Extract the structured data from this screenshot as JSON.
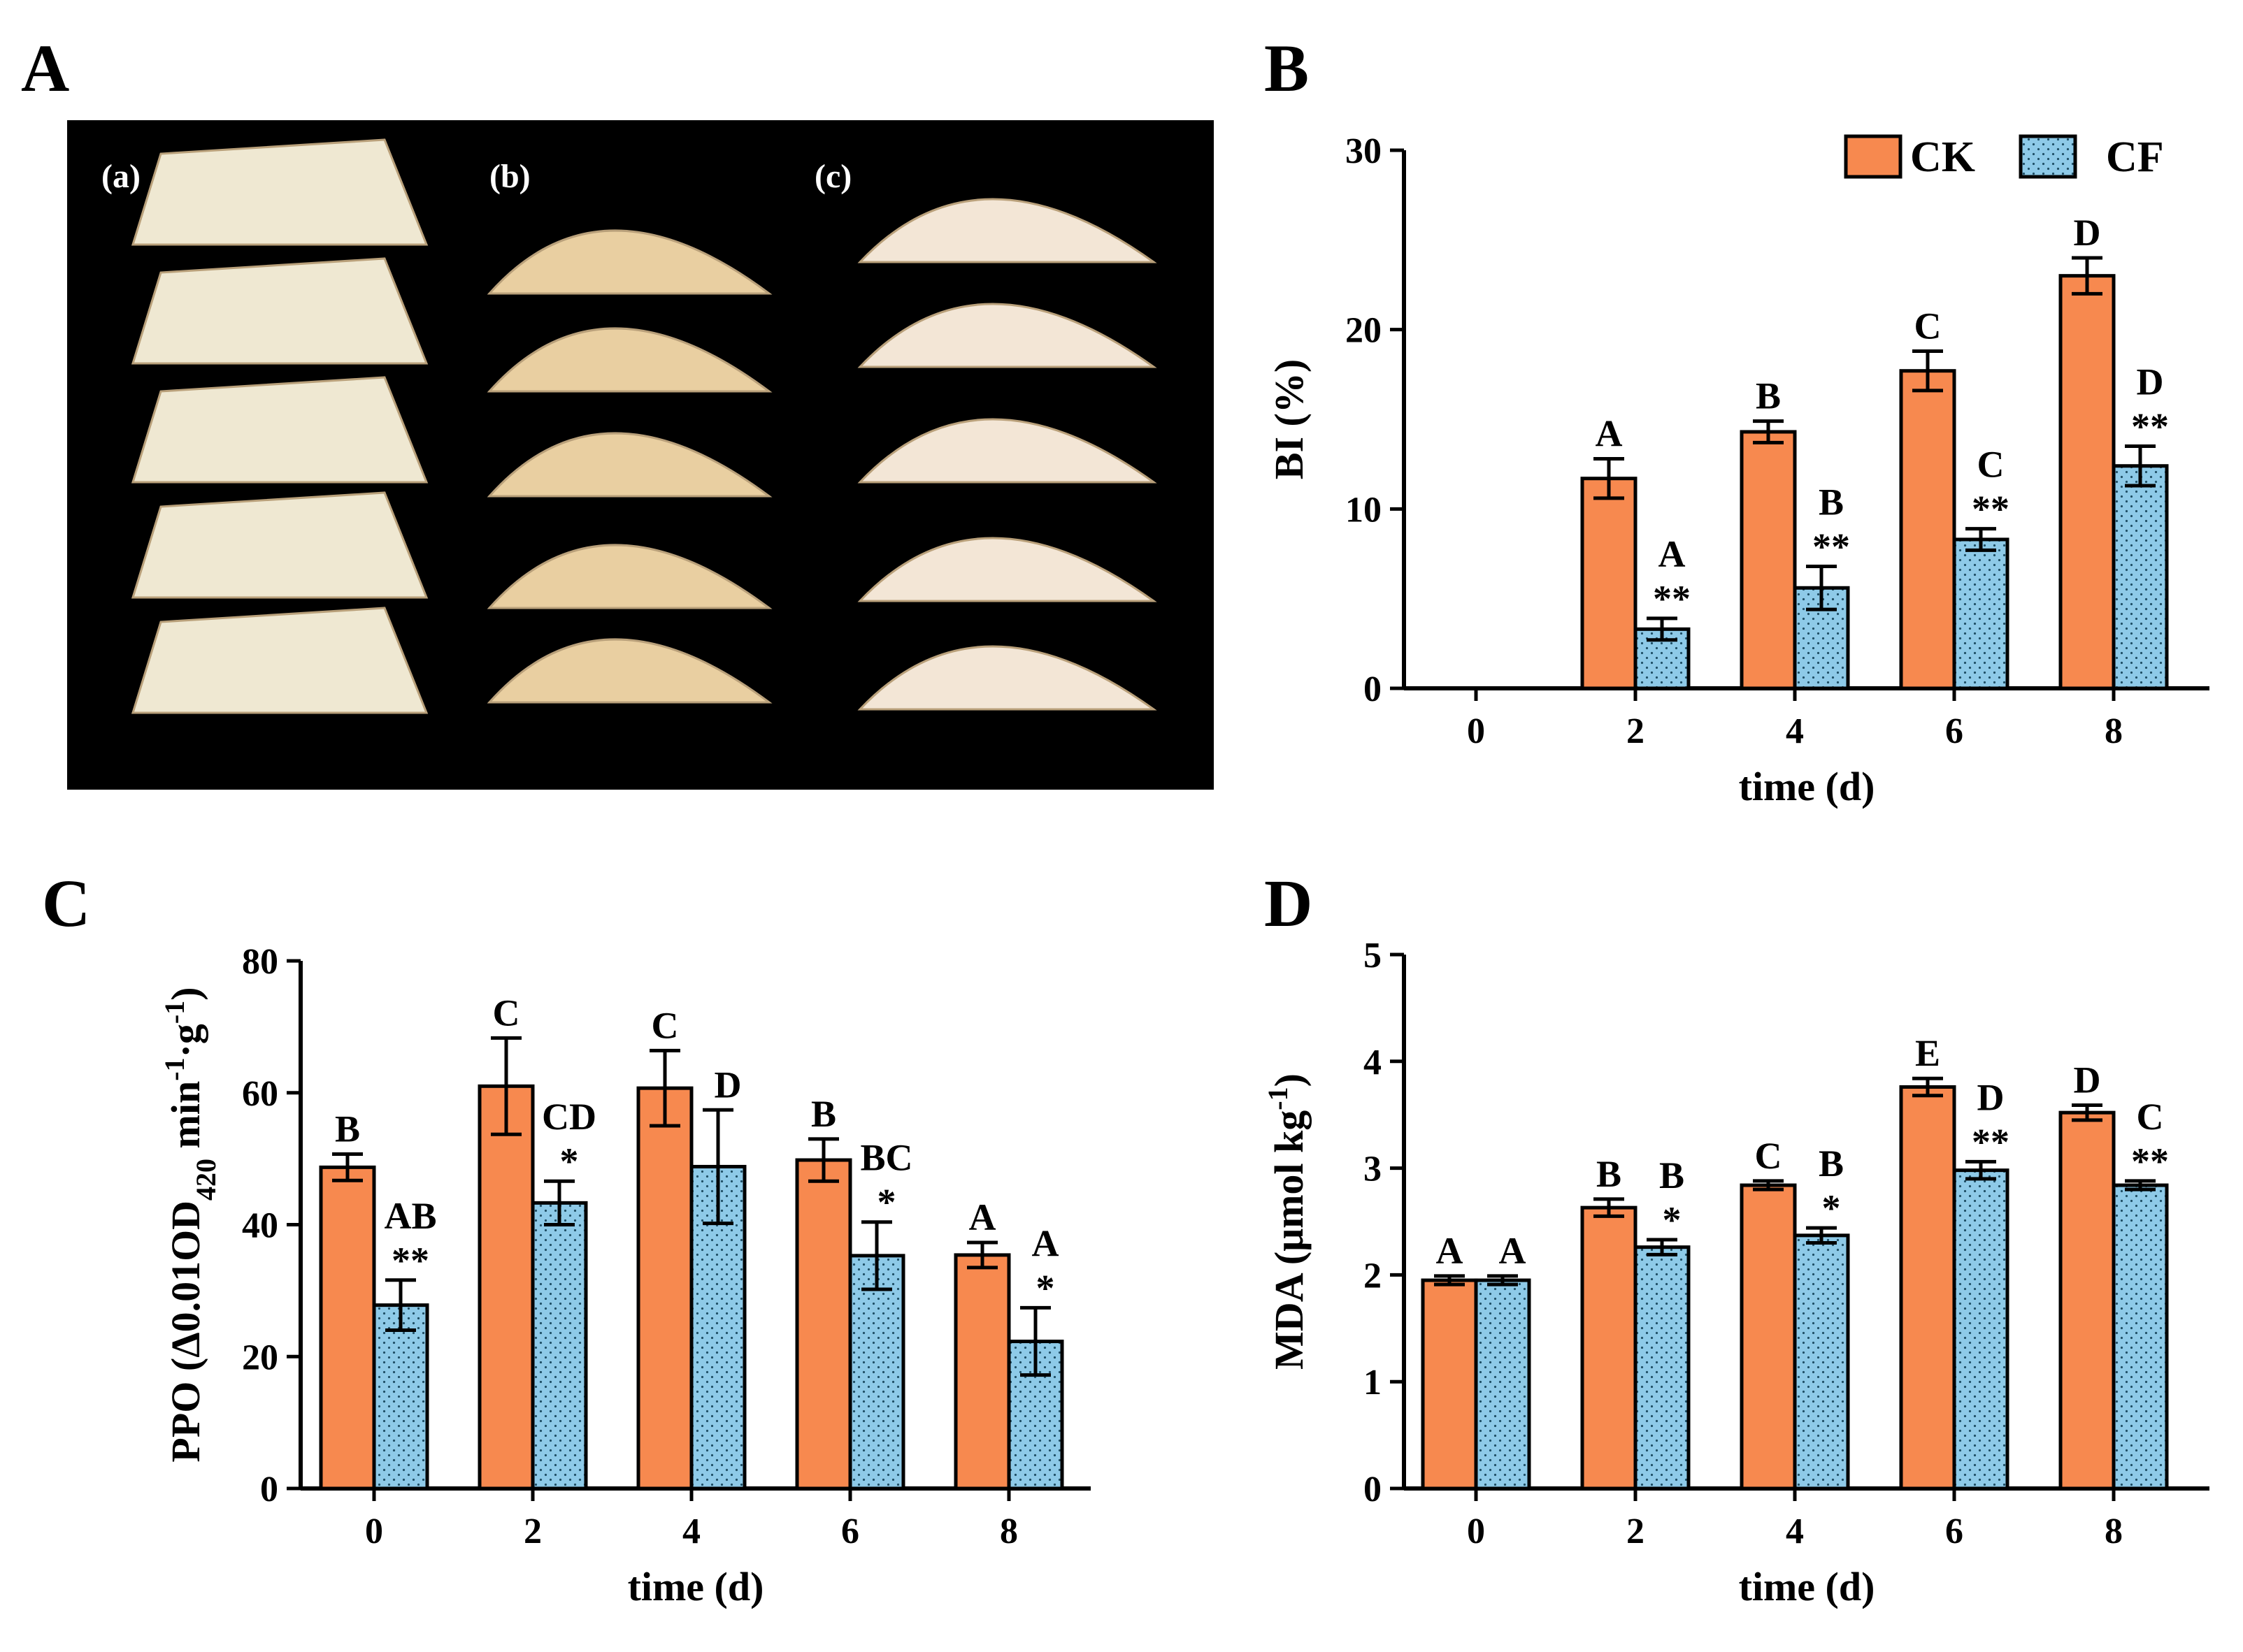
{
  "figure_labels": {
    "A": "A",
    "B": "B",
    "C": "C",
    "D": "D"
  },
  "photo": {
    "sample_labels": [
      "(a)",
      "(b)",
      "(c)"
    ],
    "background": "#000000",
    "sample_colors": [
      "#efe8d2",
      "#e9cfa1",
      "#f3e6d6"
    ]
  },
  "colors": {
    "ck": "#f7894f",
    "cf": "#8ecae8",
    "axis": "#000000"
  },
  "legend": {
    "ck": "CK",
    "cf": "CF"
  },
  "chart_data": [
    {
      "id": "B",
      "type": "bar",
      "title": "",
      "categories": [
        "0",
        "2",
        "4",
        "6",
        "8"
      ],
      "xlabel": "time (d)",
      "ylabel": "BI (%)",
      "ylim": [
        0,
        30
      ],
      "yticks": [
        "0",
        "10",
        "20",
        "30"
      ],
      "legend_position": "top-right",
      "series": [
        {
          "name": "CK",
          "values": [
            null,
            11.7,
            14.3,
            17.7,
            23.0
          ],
          "errors": [
            null,
            1.1,
            0.6,
            1.1,
            1.0
          ],
          "letters": [
            "",
            "A",
            "B",
            "C",
            "D"
          ],
          "sig": [
            "",
            "",
            "",
            "",
            ""
          ]
        },
        {
          "name": "CF",
          "values": [
            null,
            3.3,
            5.6,
            8.3,
            12.4
          ],
          "errors": [
            null,
            0.6,
            1.2,
            0.6,
            1.1
          ],
          "letters": [
            "",
            "A",
            "B",
            "C",
            "D"
          ],
          "sig": [
            "",
            "**",
            "**",
            "**",
            "**"
          ]
        }
      ]
    },
    {
      "id": "C",
      "type": "bar",
      "title": "",
      "categories": [
        "0",
        "2",
        "4",
        "6",
        "8"
      ],
      "xlabel": "time (d)",
      "ylabel_parts": [
        "PPO (Δ0.01OD",
        "420",
        " min",
        "-1",
        "·g",
        "-1",
        ")"
      ],
      "ylim": [
        0,
        80
      ],
      "yticks": [
        "0",
        "20",
        "40",
        "60",
        "80"
      ],
      "series": [
        {
          "name": "CK",
          "values": [
            48.7,
            61.0,
            60.7,
            49.8,
            35.4
          ],
          "errors": [
            2.0,
            7.3,
            5.7,
            3.2,
            1.9
          ],
          "letters": [
            "B",
            "C",
            "C",
            "B",
            "A"
          ],
          "sig": [
            "",
            "",
            "",
            "",
            ""
          ]
        },
        {
          "name": "CF",
          "values": [
            27.8,
            43.3,
            48.8,
            35.3,
            22.3
          ],
          "errors": [
            3.8,
            3.3,
            8.6,
            5.1,
            5.1
          ],
          "letters": [
            "AB",
            "CD",
            "D",
            "BC",
            "A"
          ],
          "sig": [
            "**",
            "*",
            "",
            "*",
            "*"
          ]
        }
      ]
    },
    {
      "id": "D",
      "type": "bar",
      "title": "",
      "categories": [
        "0",
        "2",
        "4",
        "6",
        "8"
      ],
      "xlabel": "time (d)",
      "ylabel_parts": [
        "MDA (μmol kg",
        "-1",
        ")"
      ],
      "ylim": [
        0,
        5
      ],
      "yticks": [
        "0",
        "1",
        "2",
        "3",
        "4",
        "5"
      ],
      "series": [
        {
          "name": "CK",
          "values": [
            1.95,
            2.63,
            2.84,
            3.76,
            3.52
          ],
          "errors": [
            0.04,
            0.08,
            0.04,
            0.08,
            0.07
          ],
          "letters": [
            "A",
            "B",
            "C",
            "E",
            "D"
          ],
          "sig": [
            "",
            "",
            "",
            "",
            ""
          ]
        },
        {
          "name": "CF",
          "values": [
            1.95,
            2.26,
            2.37,
            2.98,
            2.84
          ],
          "errors": [
            0.04,
            0.07,
            0.07,
            0.08,
            0.04
          ],
          "letters": [
            "A",
            "B",
            "B",
            "D",
            "C"
          ],
          "sig": [
            "",
            "*",
            "*",
            "**",
            "**"
          ]
        }
      ]
    }
  ]
}
